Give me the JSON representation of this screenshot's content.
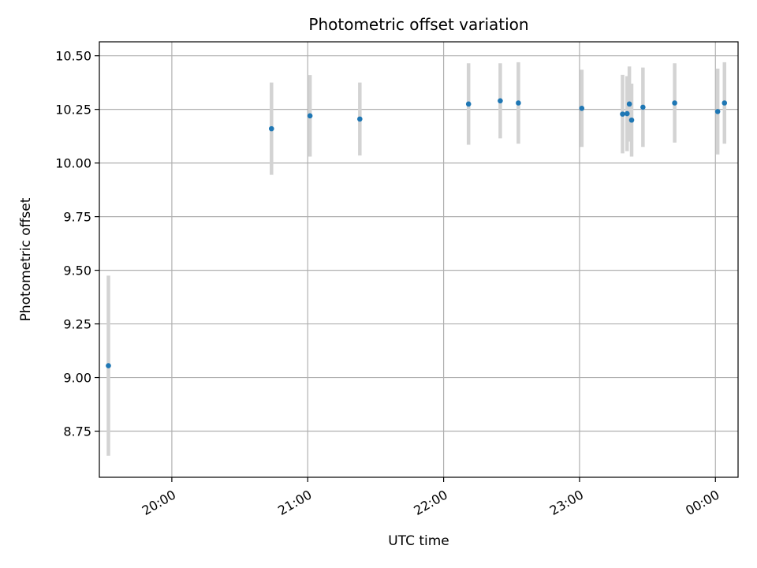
{
  "chart_data": {
    "type": "scatter",
    "title": "Photometric offset variation",
    "xlabel": "UTC time",
    "ylabel": "Photometric offset",
    "x_tick_labels": [
      "20:00",
      "21:00",
      "22:00",
      "23:00",
      "00:00"
    ],
    "x_ticks": [
      "20:00",
      "21:00",
      "22:00",
      "23:00",
      "24:00"
    ],
    "y_tick_labels": [
      "8.75",
      "9.00",
      "9.25",
      "9.50",
      "9.75",
      "10.00",
      "10.25",
      "10.50"
    ],
    "y_ticks": [
      8.75,
      9.0,
      9.25,
      9.5,
      9.75,
      10.0,
      10.25,
      10.5
    ],
    "xlim": [
      "19:28",
      "24:10"
    ],
    "ylim": [
      8.535,
      10.565
    ],
    "grid": true,
    "series": [
      {
        "points": [
          {
            "x": "19:32",
            "y": 9.055,
            "err": 0.42
          },
          {
            "x": "20:44",
            "y": 10.16,
            "err": 0.215
          },
          {
            "x": "21:01",
            "y": 10.22,
            "err": 0.19
          },
          {
            "x": "21:23",
            "y": 10.205,
            "err": 0.17
          },
          {
            "x": "22:11",
            "y": 10.275,
            "err": 0.19
          },
          {
            "x": "22:25",
            "y": 10.29,
            "err": 0.175
          },
          {
            "x": "22:33",
            "y": 10.28,
            "err": 0.19
          },
          {
            "x": "23:01",
            "y": 10.255,
            "err": 0.18
          },
          {
            "x": "23:19",
            "y": 10.228,
            "err": 0.183
          },
          {
            "x": "23:21",
            "y": 10.23,
            "err": 0.175
          },
          {
            "x": "23:22",
            "y": 10.275,
            "err": 0.175
          },
          {
            "x": "23:23",
            "y": 10.2,
            "err": 0.17
          },
          {
            "x": "23:28",
            "y": 10.26,
            "err": 0.185
          },
          {
            "x": "23:42",
            "y": 10.28,
            "err": 0.185
          },
          {
            "x": "24:01",
            "y": 10.24,
            "err": 0.2
          },
          {
            "x": "24:04",
            "y": 10.28,
            "err": 0.19
          }
        ]
      }
    ],
    "colors": {
      "point": "#1f77b4",
      "errorbar": "#d3d3d3",
      "grid": "#b0b0b0",
      "axes": "#000000"
    }
  }
}
